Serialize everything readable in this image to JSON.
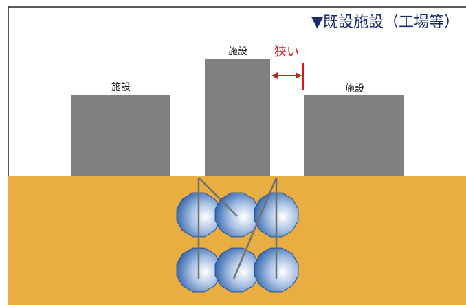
{
  "header": {
    "title": "▼既設施設（工場等）"
  },
  "buildings": [
    {
      "label": "施設"
    },
    {
      "label": "施設"
    },
    {
      "label": "施設"
    }
  ],
  "annotation": {
    "label": "狭い"
  }
}
